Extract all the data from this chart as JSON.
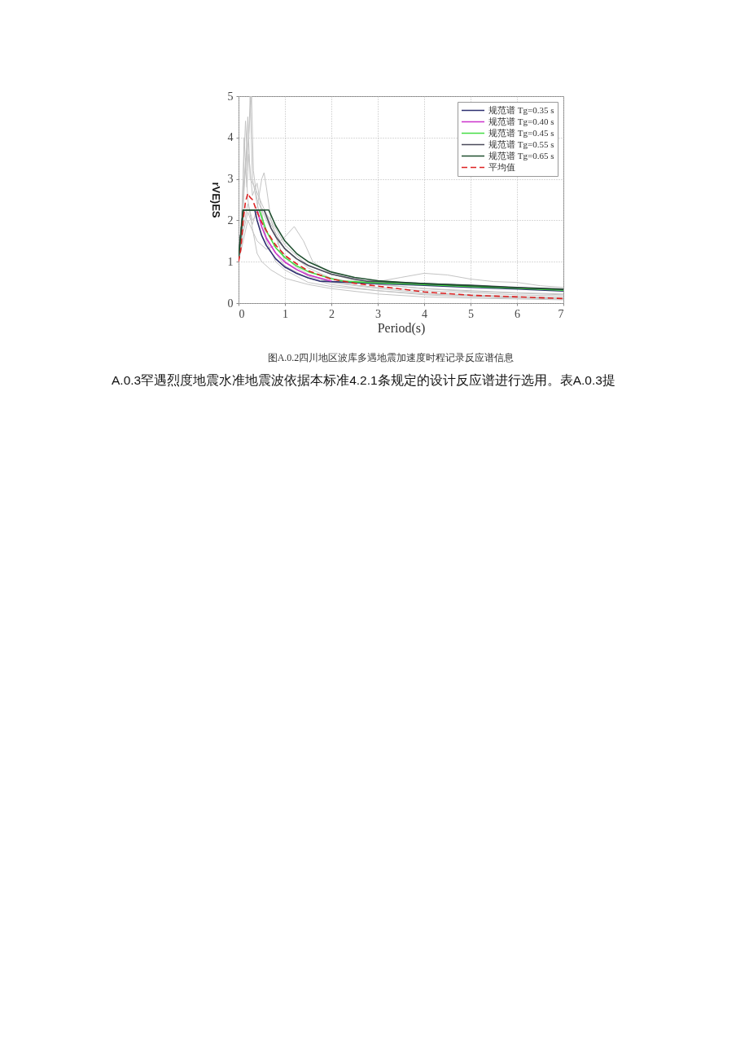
{
  "chart_data": {
    "type": "line",
    "xlabel": "Period(s)",
    "ylabel": "rVE)ES",
    "annotations": [
      "图A.0.2四川地区波库多遇地震加速度时程记录反应谱信息",
      "A.0.3罕遇烈度地震水准地震波依据本标准4.2.1条规定的设计反应谱进行选用。表A.0.3提"
    ],
    "xlim": [
      0,
      7
    ],
    "ylim": [
      0,
      5
    ],
    "xticks": [
      0,
      1,
      2,
      3,
      4,
      5,
      6,
      7
    ],
    "yticks": [
      0,
      1,
      2,
      3,
      4,
      5
    ],
    "grid": true,
    "legend": "top right",
    "series": [
      {
        "color": "#c4c4c4",
        "x": [
          0,
          0.05,
          0.1,
          0.15,
          0.2,
          0.25,
          0.3,
          0.4,
          0.5,
          0.6,
          0.8,
          1,
          1.5,
          2,
          3,
          4,
          5,
          6,
          7
        ],
        "values": [
          1.0,
          1.6,
          3.0,
          4.4,
          3.2,
          5.0,
          3.0,
          2.4,
          2.0,
          1.6,
          1.2,
          0.9,
          0.6,
          0.45,
          0.3,
          0.2,
          0.15,
          0.12,
          0.1
        ]
      },
      {
        "color": "#c4c4c4",
        "x": [
          0,
          0.08,
          0.12,
          0.18,
          0.22,
          0.3,
          0.4,
          0.5,
          0.6,
          0.8,
          1,
          1.5,
          2,
          3,
          4,
          5,
          6,
          7
        ],
        "values": [
          1.0,
          2.2,
          4.0,
          2.8,
          3.6,
          2.6,
          2.9,
          2.2,
          1.5,
          1.0,
          0.8,
          0.5,
          0.4,
          0.3,
          0.22,
          0.18,
          0.14,
          0.12
        ]
      },
      {
        "color": "#c4c4c4",
        "x": [
          0,
          0.1,
          0.2,
          0.3,
          0.5,
          0.7,
          1,
          1.5,
          2,
          2.5,
          3,
          3.5,
          4,
          4.5,
          5,
          5.5,
          6,
          6.5,
          7
        ],
        "values": [
          1.0,
          1.8,
          2.4,
          2.0,
          2.3,
          2.0,
          1.4,
          0.9,
          0.7,
          0.55,
          0.52,
          0.62,
          0.72,
          0.68,
          0.58,
          0.52,
          0.5,
          0.42,
          0.38
        ]
      },
      {
        "color": "#c4c4c4",
        "x": [
          0,
          0.1,
          0.2,
          0.4,
          0.6,
          0.8,
          1,
          1.2,
          1.4,
          1.6,
          2,
          2.5,
          3,
          4,
          5,
          6,
          7
        ],
        "values": [
          1.0,
          1.5,
          2.0,
          1.5,
          1.3,
          1.4,
          1.6,
          1.85,
          1.5,
          1.0,
          0.7,
          0.55,
          0.45,
          0.35,
          0.3,
          0.25,
          0.22
        ]
      },
      {
        "color": "#c4c4c4",
        "x": [
          0,
          0.1,
          0.2,
          0.3,
          0.4,
          0.5,
          0.55,
          0.6,
          0.7,
          0.9,
          1.2,
          1.5,
          2,
          3,
          4,
          5,
          6,
          7
        ],
        "values": [
          1.0,
          1.7,
          2.2,
          1.9,
          2.3,
          3.0,
          3.15,
          2.8,
          2.0,
          1.3,
          0.9,
          0.7,
          0.5,
          0.35,
          0.25,
          0.2,
          0.16,
          0.13
        ]
      },
      {
        "color": "#c4c4c4",
        "x": [
          0,
          0.1,
          0.15,
          0.2,
          0.3,
          0.4,
          0.5,
          0.7,
          1,
          1.5,
          2,
          3,
          4,
          5,
          6,
          7
        ],
        "values": [
          1.0,
          2.2,
          3.5,
          2.5,
          1.8,
          1.2,
          1.0,
          0.8,
          0.6,
          0.45,
          0.35,
          0.22,
          0.15,
          0.12,
          0.1,
          0.08
        ]
      },
      {
        "color": "#c4c4c4",
        "x": [
          0,
          0.1,
          0.15,
          0.2,
          0.25,
          0.35,
          0.5,
          0.7,
          1,
          1.5,
          2,
          2.5,
          3,
          4,
          5,
          6,
          7
        ],
        "values": [
          1.0,
          2.6,
          3.2,
          4.5,
          3.0,
          2.8,
          2.4,
          1.9,
          1.3,
          0.85,
          0.6,
          0.5,
          0.45,
          0.35,
          0.28,
          0.24,
          0.2
        ]
      },
      {
        "color": "#c4c4c4",
        "x": [
          0,
          0.12,
          0.2,
          0.28,
          0.32,
          0.4,
          0.6,
          0.8,
          1,
          1.5,
          2,
          3,
          4,
          5,
          6,
          7
        ],
        "values": [
          1.0,
          3.0,
          3.8,
          5.0,
          3.2,
          2.5,
          2.0,
          1.6,
          1.0,
          0.65,
          0.5,
          0.38,
          0.3,
          0.25,
          0.2,
          0.17
        ]
      },
      {
        "name": "规范谱 Tg=0.35 s",
        "color": "#2e3070",
        "x": [
          0,
          0.1,
          0.35,
          0.4,
          0.5,
          0.6,
          0.8,
          1,
          1.25,
          1.5,
          1.75,
          2,
          3,
          4,
          5,
          6,
          7
        ],
        "values": [
          1.1,
          2.25,
          2.25,
          2.0,
          1.63,
          1.39,
          1.07,
          0.87,
          0.72,
          0.61,
          0.53,
          0.52,
          0.47,
          0.43,
          0.38,
          0.34,
          0.29
        ]
      },
      {
        "name": "规范谱 Tg=0.40 s",
        "color": "#cc33cc",
        "x": [
          0,
          0.1,
          0.4,
          0.5,
          0.6,
          0.8,
          1,
          1.25,
          1.5,
          2
        ],
        "values": [
          1.1,
          2.25,
          2.25,
          1.84,
          1.56,
          1.21,
          0.99,
          0.81,
          0.68,
          0.53
        ]
      },
      {
        "name": "规范谱 Tg=0.45 s",
        "color": "#44dd44",
        "x": [
          0,
          0.1,
          0.45,
          0.6,
          0.8,
          1,
          1.25,
          1.5,
          2,
          2.25,
          3,
          4,
          5,
          6,
          7
        ],
        "values": [
          1.1,
          2.25,
          2.25,
          1.74,
          1.34,
          1.1,
          0.9,
          0.76,
          0.59,
          0.53,
          0.49,
          0.45,
          0.4,
          0.36,
          0.31
        ]
      },
      {
        "name": "规范谱 Tg=0.55 s",
        "color": "#4a4a5a",
        "x": [
          0,
          0.1,
          0.55,
          0.7,
          0.8,
          1,
          1.25,
          1.5,
          2,
          2.5,
          2.75,
          3,
          4,
          5,
          6,
          7
        ],
        "values": [
          1.1,
          2.25,
          2.25,
          1.81,
          1.61,
          1.31,
          1.07,
          0.91,
          0.7,
          0.58,
          0.53,
          0.52,
          0.47,
          0.43,
          0.38,
          0.34
        ]
      },
      {
        "name": "规范谱 Tg=0.65 s",
        "color": "#1f4f2f",
        "x": [
          0,
          0.1,
          0.65,
          0.8,
          1,
          1.25,
          1.5,
          2,
          2.5,
          3,
          3.25,
          4,
          5,
          6,
          7
        ],
        "values": [
          1.1,
          2.25,
          2.25,
          1.87,
          1.5,
          1.2,
          1.0,
          0.75,
          0.62,
          0.54,
          0.52,
          0.47,
          0.42,
          0.37,
          0.33
        ]
      },
      {
        "name": "平均值",
        "color": "#dd2222",
        "line_style": "dashed",
        "x": [
          0,
          0.05,
          0.1,
          0.15,
          0.2,
          0.25,
          0.3,
          0.4,
          0.5,
          0.6,
          0.8,
          1,
          1.25,
          1.5,
          2,
          2.5,
          3,
          3.5,
          4,
          5,
          6,
          7
        ],
        "values": [
          1.0,
          1.3,
          2.0,
          2.45,
          2.65,
          2.55,
          2.5,
          2.2,
          1.95,
          1.75,
          1.4,
          1.15,
          0.95,
          0.78,
          0.58,
          0.48,
          0.41,
          0.34,
          0.27,
          0.19,
          0.15,
          0.11
        ]
      }
    ]
  }
}
